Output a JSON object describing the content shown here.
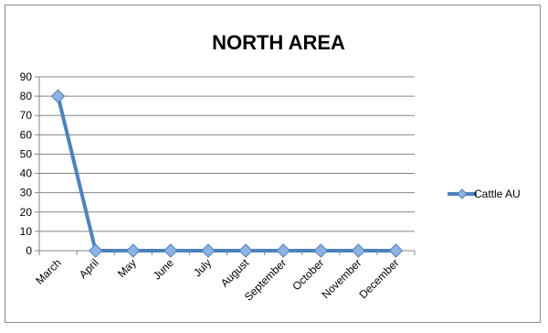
{
  "chart_data": {
    "type": "line",
    "title": "NORTH AREA",
    "xlabel": "",
    "ylabel": "",
    "categories": [
      "March",
      "April",
      "May",
      "June",
      "July",
      "August",
      "September",
      "October",
      "November",
      "December"
    ],
    "series": [
      {
        "name": "Cattle AU",
        "values": [
          80,
          0,
          0,
          0,
          0,
          0,
          0,
          0,
          0,
          0
        ]
      }
    ],
    "ylim": [
      0,
      90
    ],
    "yticks": [
      0,
      10,
      20,
      30,
      40,
      50,
      60,
      70,
      80,
      90
    ],
    "grid": true,
    "legend": "right",
    "colors": {
      "line": "#4f81bd",
      "marker_fill": "#8db3e2",
      "grid": "#868686",
      "axis": "#868686"
    }
  }
}
